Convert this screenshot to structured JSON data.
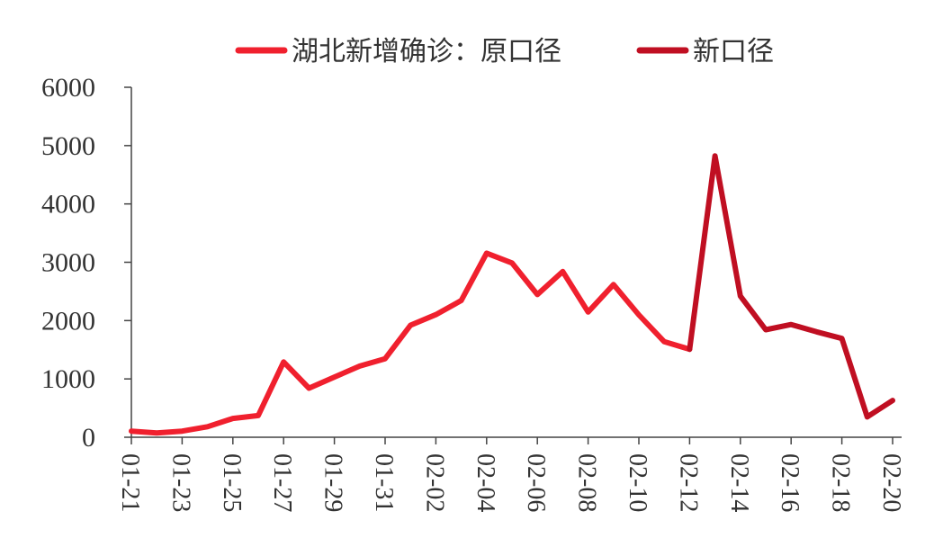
{
  "chart_data": {
    "type": "line",
    "title": "",
    "xlabel": "",
    "ylabel": "",
    "ylim": [
      0,
      6000
    ],
    "yticks": [
      0,
      1000,
      2000,
      3000,
      4000,
      5000,
      6000
    ],
    "grid": false,
    "legend_position": "top",
    "x": [
      "01-21",
      "01-22",
      "01-23",
      "01-24",
      "01-25",
      "01-26",
      "01-27",
      "01-28",
      "01-29",
      "01-30",
      "01-31",
      "02-01",
      "02-02",
      "02-03",
      "02-04",
      "02-05",
      "02-06",
      "02-07",
      "02-08",
      "02-09",
      "02-10",
      "02-11",
      "02-12",
      "02-13",
      "02-14",
      "02-15",
      "02-16",
      "02-17",
      "02-18",
      "02-19",
      "02-20"
    ],
    "xtick_labels": [
      "01-21",
      "01-23",
      "01-25",
      "01-27",
      "01-29",
      "01-31",
      "02-02",
      "02-04",
      "02-06",
      "02-08",
      "02-10",
      "02-12",
      "02-14",
      "02-16",
      "02-18",
      "02-20"
    ],
    "series": [
      {
        "name": "湖北新增确诊：原口径",
        "color": "#f0202e",
        "x": [
          "01-21",
          "01-22",
          "01-23",
          "01-24",
          "01-25",
          "01-26",
          "01-27",
          "01-28",
          "01-29",
          "01-30",
          "01-31",
          "02-01",
          "02-02",
          "02-03",
          "02-04",
          "02-05",
          "02-06",
          "02-07",
          "02-08",
          "02-09",
          "02-10",
          "02-11",
          "02-12"
        ],
        "values": [
          105,
          72,
          105,
          180,
          323,
          371,
          1291,
          840,
          1032,
          1220,
          1347,
          1921,
          2103,
          2345,
          3156,
          2987,
          2447,
          2841,
          2147,
          2618,
          2097,
          1638,
          1508
        ]
      },
      {
        "name": "新口径",
        "color": "#c00f22",
        "x": [
          "02-12",
          "02-13",
          "02-14",
          "02-15",
          "02-16",
          "02-17",
          "02-18",
          "02-19",
          "02-20"
        ],
        "values": [
          1508,
          4823,
          2420,
          1843,
          1933,
          1807,
          1693,
          349,
          631
        ]
      }
    ]
  }
}
